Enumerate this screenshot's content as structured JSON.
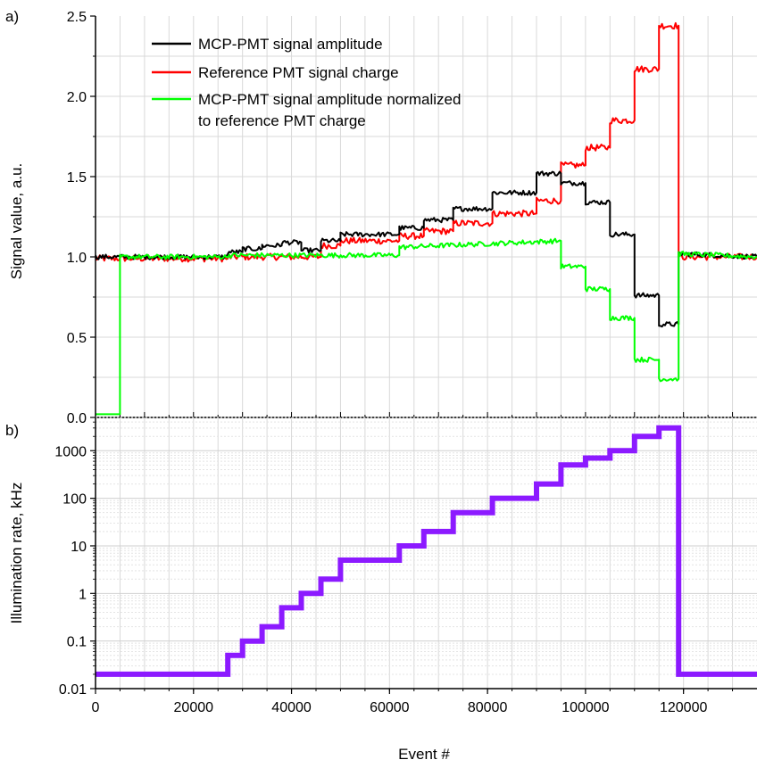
{
  "chart_data": [
    {
      "panel_label": "a)",
      "type": "line",
      "xlabel": "",
      "ylabel": "Signal value, a.u.",
      "xlim": [
        0,
        135000
      ],
      "ylim": [
        0,
        2.5
      ],
      "yticks": [
        0.0,
        0.5,
        1.0,
        1.5,
        2.0,
        2.5
      ],
      "ytick_labels": [
        "0.0",
        "0.5",
        "1.0",
        "1.5",
        "2.0",
        "2.5"
      ],
      "grid": true,
      "legend_position": "top-left",
      "series": [
        {
          "name": "MCP-PMT signal amplitude",
          "color": "#000000",
          "x": [
            0,
            27000,
            27000,
            30000,
            30000,
            34000,
            34000,
            38000,
            38000,
            42000,
            42000,
            46000,
            46000,
            50000,
            50000,
            62000,
            62000,
            67000,
            67000,
            73000,
            73000,
            81000,
            81000,
            90000,
            90000,
            95000,
            95000,
            100000,
            100000,
            105000,
            105000,
            110000,
            110000,
            115000,
            115000,
            119000,
            119000,
            135000
          ],
          "y": [
            1.0,
            1.0,
            1.03,
            1.03,
            1.05,
            1.05,
            1.07,
            1.07,
            1.09,
            1.09,
            1.04,
            1.04,
            1.1,
            1.1,
            1.14,
            1.14,
            1.18,
            1.18,
            1.23,
            1.23,
            1.3,
            1.3,
            1.4,
            1.4,
            1.52,
            1.52,
            1.46,
            1.46,
            1.34,
            1.34,
            1.14,
            1.14,
            0.76,
            0.76,
            0.58,
            0.58,
            1.02,
            1.0
          ]
        },
        {
          "name": "Reference PMT signal charge",
          "color": "#ff0000",
          "x": [
            0,
            27000,
            27000,
            42000,
            42000,
            46000,
            46000,
            50000,
            50000,
            62000,
            62000,
            67000,
            67000,
            73000,
            73000,
            81000,
            81000,
            90000,
            90000,
            95000,
            95000,
            100000,
            100000,
            105000,
            105000,
            110000,
            110000,
            115000,
            115000,
            119000,
            119000,
            135000
          ],
          "y": [
            0.99,
            0.99,
            1.0,
            1.0,
            1.0,
            1.0,
            1.07,
            1.07,
            1.1,
            1.1,
            1.13,
            1.13,
            1.16,
            1.16,
            1.21,
            1.21,
            1.27,
            1.27,
            1.35,
            1.35,
            1.57,
            1.57,
            1.68,
            1.68,
            1.85,
            1.85,
            2.17,
            2.17,
            2.44,
            2.44,
            1.0,
            1.0
          ]
        },
        {
          "name": "MCP-PMT signal amplitude normalized to reference PMT charge",
          "legend_lines": [
            "MCP-PMT signal amplitude normalized",
            "to reference PMT charge"
          ],
          "color": "#00ff00",
          "x": [
            0,
            5000,
            5000,
            27000,
            27000,
            62000,
            62000,
            95000,
            95000,
            100000,
            100000,
            105000,
            105000,
            110000,
            110000,
            115000,
            115000,
            119000,
            119000,
            135000
          ],
          "y": [
            0.02,
            0.02,
            1.0,
            1.0,
            1.01,
            1.01,
            1.06,
            1.1,
            0.94,
            0.94,
            0.8,
            0.8,
            0.62,
            0.62,
            0.36,
            0.36,
            0.24,
            0.24,
            1.02,
            1.0
          ]
        }
      ]
    },
    {
      "panel_label": "b)",
      "type": "line",
      "xlabel": "Event #",
      "ylabel": "Illumination rate, kHz",
      "xlim": [
        0,
        135000
      ],
      "ylim": [
        0.01,
        5000
      ],
      "yscale": "log",
      "yticks": [
        0.01,
        0.1,
        1,
        10,
        100,
        1000
      ],
      "ytick_labels": [
        "0.01",
        "0.1",
        "1",
        "10",
        "100",
        "1000"
      ],
      "xticks": [
        0,
        20000,
        40000,
        60000,
        80000,
        100000,
        120000
      ],
      "xtick_labels": [
        "0",
        "20000",
        "40000",
        "60000",
        "80000",
        "100000",
        "120000"
      ],
      "grid": true,
      "series": [
        {
          "color": "#8c1aff",
          "x": [
            0,
            27000,
            27000,
            30000,
            30000,
            34000,
            34000,
            38000,
            38000,
            42000,
            42000,
            46000,
            46000,
            50000,
            50000,
            62000,
            62000,
            67000,
            67000,
            73000,
            73000,
            81000,
            81000,
            90000,
            90000,
            95000,
            95000,
            100000,
            100000,
            105000,
            105000,
            110000,
            110000,
            115000,
            115000,
            119000,
            119000,
            135000
          ],
          "y": [
            0.02,
            0.02,
            0.05,
            0.05,
            0.1,
            0.1,
            0.2,
            0.2,
            0.5,
            0.5,
            1,
            1,
            2,
            2,
            5,
            5,
            10,
            10,
            20,
            20,
            50,
            50,
            100,
            100,
            200,
            200,
            500,
            500,
            700,
            700,
            1000,
            1000,
            2000,
            2000,
            3000,
            3000,
            0.02,
            0.02
          ]
        }
      ]
    }
  ]
}
